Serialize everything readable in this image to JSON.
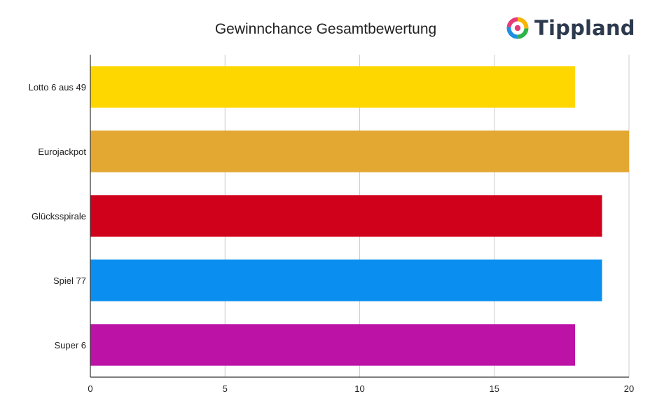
{
  "brand": {
    "name": "Tippland",
    "logo_icon": "colorful-ring-icon"
  },
  "chart_data": {
    "type": "bar",
    "orientation": "horizontal",
    "title": "Gewinnchance Gesamtbewertung",
    "categories": [
      "Lotto 6 aus 49",
      "Eurojackpot",
      "Glücksspirale",
      "Spiel 77",
      "Super 6"
    ],
    "values": [
      18,
      20,
      19,
      19,
      18
    ],
    "colors": [
      "#FFD700",
      "#E3A832",
      "#D0021B",
      "#0A8FF0",
      "#BC12A6"
    ],
    "xlim": [
      0,
      20
    ],
    "xticks": [
      "0",
      "5",
      "10",
      "15",
      "20"
    ],
    "grid": true,
    "legend": "none"
  }
}
